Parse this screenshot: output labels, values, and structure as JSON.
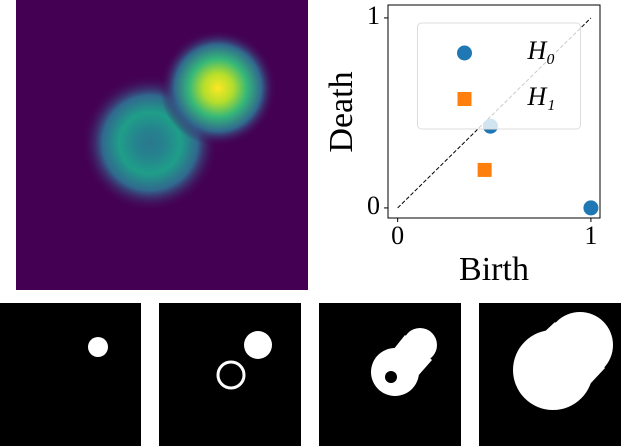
{
  "chart_data": {
    "type": "scatter",
    "xlabel": "Birth",
    "ylabel": "Death",
    "xlim": [
      -0.05,
      1.047
    ],
    "ylim": [
      -0.053,
      1.068
    ],
    "xticks": [
      0,
      1
    ],
    "yticks": [
      0,
      1
    ],
    "legend": "upper center",
    "series": [
      {
        "name": "H₀",
        "color": "#1f77b4",
        "marker": "circle",
        "x": [
          0.48,
          1.0
        ],
        "values": [
          0.43,
          0.0
        ]
      },
      {
        "name": "H₁",
        "color": "#ff7f0e",
        "marker": "square",
        "x": [
          0.45
        ],
        "values": [
          0.2
        ]
      }
    ]
  }
}
